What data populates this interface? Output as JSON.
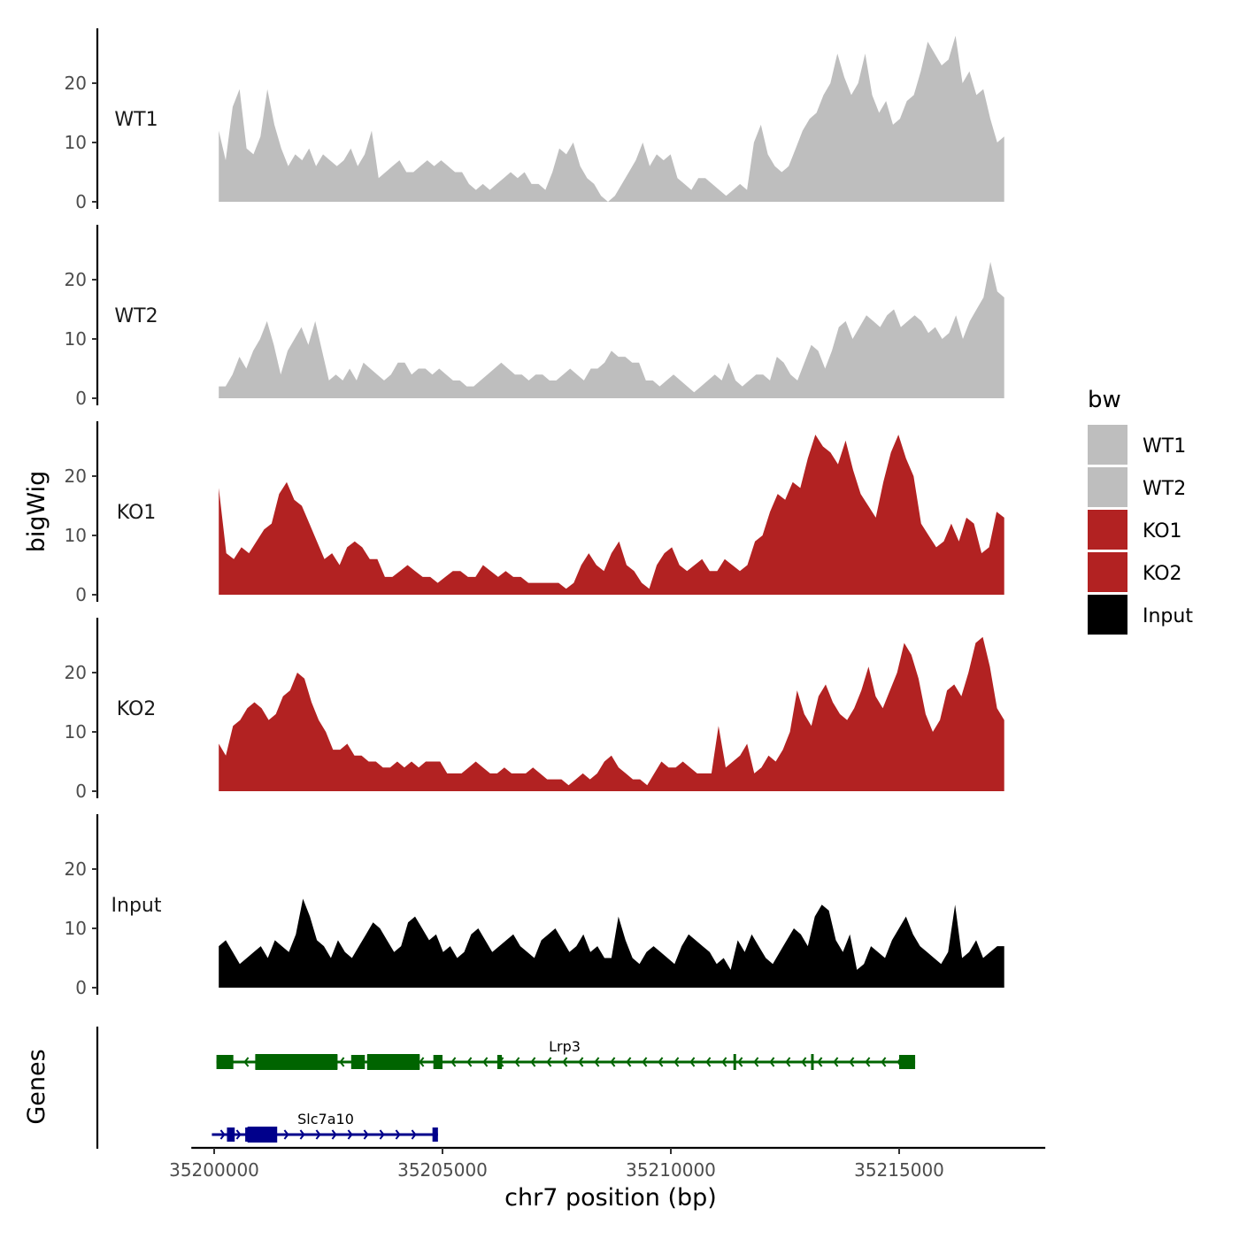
{
  "chart_data": {
    "type": "area",
    "title": "",
    "ylabel": "bigWig",
    "xlabel": "chr7 position (bp)",
    "chromosome": "chr7",
    "xlim": [
      35199500,
      35218200
    ],
    "ylim": [
      0,
      29
    ],
    "yticks": [
      0,
      10,
      20
    ],
    "xticks": [
      {
        "value": 35200000,
        "label": "35200000"
      },
      {
        "value": 35205000,
        "label": "35205000"
      },
      {
        "value": 35210000,
        "label": "35210000"
      },
      {
        "value": 35215000,
        "label": "35215000"
      }
    ],
    "x_start": 35200100,
    "x_step": 100,
    "legend": {
      "title": "bw",
      "position": "right",
      "entries": [
        {
          "label": "WT1",
          "color": "#bebebe"
        },
        {
          "label": "WT2",
          "color": "#bebebe"
        },
        {
          "label": "KO1",
          "color": "#b22222"
        },
        {
          "label": "KO2",
          "color": "#b22222"
        },
        {
          "label": "Input",
          "color": "#000000"
        }
      ]
    },
    "series": [
      {
        "name": "WT1",
        "color": "#bebebe",
        "values": [
          12,
          7,
          16,
          19,
          9,
          8,
          11,
          19,
          13,
          9,
          6,
          8,
          7,
          9,
          6,
          8,
          7,
          6,
          7,
          9,
          6,
          8,
          12,
          4,
          5,
          6,
          7,
          5,
          5,
          6,
          7,
          6,
          7,
          6,
          5,
          5,
          3,
          2,
          3,
          2,
          3,
          4,
          5,
          4,
          5,
          3,
          3,
          2,
          5,
          9,
          8,
          10,
          6,
          4,
          3,
          1,
          0,
          1,
          3,
          5,
          7,
          10,
          6,
          8,
          7,
          8,
          4,
          3,
          2,
          4,
          4,
          3,
          2,
          1,
          2,
          3,
          2,
          10,
          13,
          8,
          6,
          5,
          6,
          9,
          12,
          14,
          15,
          18,
          20,
          25,
          21,
          18,
          20,
          25,
          18,
          15,
          17,
          13,
          14,
          17,
          18,
          22,
          27,
          25,
          23,
          24,
          28,
          20,
          22,
          18,
          19,
          14,
          10,
          11
        ]
      },
      {
        "name": "WT2",
        "color": "#bebebe",
        "values": [
          2,
          2,
          4,
          7,
          5,
          8,
          10,
          13,
          9,
          4,
          8,
          10,
          12,
          9,
          13,
          8,
          3,
          4,
          3,
          5,
          3,
          6,
          5,
          4,
          3,
          4,
          6,
          6,
          4,
          5,
          5,
          4,
          5,
          4,
          3,
          3,
          2,
          2,
          3,
          4,
          5,
          6,
          5,
          4,
          4,
          3,
          4,
          4,
          3,
          3,
          4,
          5,
          4,
          3,
          5,
          5,
          6,
          8,
          7,
          7,
          6,
          6,
          3,
          3,
          2,
          3,
          4,
          3,
          2,
          1,
          2,
          3,
          4,
          3,
          6,
          3,
          2,
          3,
          4,
          4,
          3,
          7,
          6,
          4,
          3,
          6,
          9,
          8,
          5,
          8,
          12,
          13,
          10,
          12,
          14,
          13,
          12,
          14,
          15,
          12,
          13,
          14,
          13,
          11,
          12,
          10,
          11,
          14,
          10,
          13,
          15,
          17,
          23,
          18,
          17
        ]
      },
      {
        "name": "KO1",
        "color": "#b22222",
        "values": [
          18,
          7,
          6,
          8,
          7,
          9,
          11,
          12,
          17,
          19,
          16,
          15,
          12,
          9,
          6,
          7,
          5,
          8,
          9,
          8,
          6,
          6,
          3,
          3,
          4,
          5,
          4,
          3,
          3,
          2,
          3,
          4,
          4,
          3,
          3,
          5,
          4,
          3,
          4,
          3,
          3,
          2,
          2,
          2,
          2,
          2,
          1,
          2,
          5,
          7,
          5,
          4,
          7,
          9,
          5,
          4,
          2,
          1,
          5,
          7,
          8,
          5,
          4,
          5,
          6,
          4,
          4,
          6,
          5,
          4,
          5,
          9,
          10,
          14,
          17,
          16,
          19,
          18,
          23,
          27,
          25,
          24,
          22,
          26,
          21,
          17,
          15,
          13,
          19,
          24,
          27,
          23,
          20,
          12,
          10,
          8,
          9,
          12,
          9,
          13,
          12,
          7,
          8,
          14,
          13
        ]
      },
      {
        "name": "KO2",
        "color": "#b22222",
        "values": [
          8,
          6,
          11,
          12,
          14,
          15,
          14,
          12,
          13,
          16,
          17,
          20,
          19,
          15,
          12,
          10,
          7,
          7,
          8,
          6,
          6,
          5,
          5,
          4,
          4,
          5,
          4,
          5,
          4,
          5,
          5,
          5,
          3,
          3,
          3,
          4,
          5,
          4,
          3,
          3,
          4,
          3,
          3,
          3,
          4,
          3,
          2,
          2,
          2,
          1,
          2,
          3,
          2,
          3,
          5,
          6,
          4,
          3,
          2,
          2,
          1,
          3,
          5,
          4,
          4,
          5,
          4,
          3,
          3,
          3,
          11,
          4,
          5,
          6,
          8,
          3,
          4,
          6,
          5,
          7,
          10,
          17,
          13,
          11,
          16,
          18,
          15,
          13,
          12,
          14,
          17,
          21,
          16,
          14,
          17,
          20,
          25,
          23,
          19,
          13,
          10,
          12,
          17,
          18,
          16,
          20,
          25,
          26,
          21,
          14,
          12
        ]
      },
      {
        "name": "Input",
        "color": "#000000",
        "values": [
          7,
          8,
          6,
          4,
          5,
          6,
          7,
          5,
          8,
          7,
          6,
          9,
          15,
          12,
          8,
          7,
          5,
          8,
          6,
          5,
          7,
          9,
          11,
          10,
          8,
          6,
          7,
          11,
          12,
          10,
          8,
          9,
          6,
          7,
          5,
          6,
          9,
          10,
          8,
          6,
          7,
          8,
          9,
          7,
          6,
          5,
          8,
          9,
          10,
          8,
          6,
          7,
          9,
          6,
          7,
          5,
          5,
          12,
          8,
          5,
          4,
          6,
          7,
          6,
          5,
          4,
          7,
          9,
          8,
          7,
          6,
          4,
          5,
          3,
          8,
          6,
          9,
          7,
          5,
          4,
          6,
          8,
          10,
          9,
          7,
          12,
          14,
          13,
          8,
          6,
          9,
          3,
          4,
          7,
          6,
          5,
          8,
          10,
          12,
          9,
          7,
          6,
          5,
          4,
          6,
          14,
          5,
          6,
          8,
          5,
          6,
          7,
          7
        ]
      }
    ],
    "genes": [
      {
        "name": "Slc7a10",
        "color": "#00008b",
        "strand": "+",
        "start": 35199950,
        "end": 35204900,
        "exons": [
          [
            35200280,
            35200450
          ],
          [
            35200680,
            35201360
          ],
          [
            35204780,
            35204900
          ]
        ],
        "thick_exons": [
          [
            35200730,
            35201380
          ]
        ]
      },
      {
        "name": "Lrp3",
        "color": "#006400",
        "strand": "-",
        "start": 35200050,
        "end": 35215350,
        "exons": [
          [
            35200050,
            35200420
          ],
          [
            35200900,
            35202700
          ],
          [
            35203000,
            35203300
          ],
          [
            35203350,
            35204500
          ],
          [
            35204800,
            35205000
          ],
          [
            35206200,
            35206300
          ],
          [
            35215000,
            35215350
          ]
        ],
        "thick_exons": [
          [
            35200900,
            35202700
          ],
          [
            35203350,
            35204500
          ]
        ],
        "introns_marks": [
          35211400,
          35213100
        ]
      }
    ]
  }
}
